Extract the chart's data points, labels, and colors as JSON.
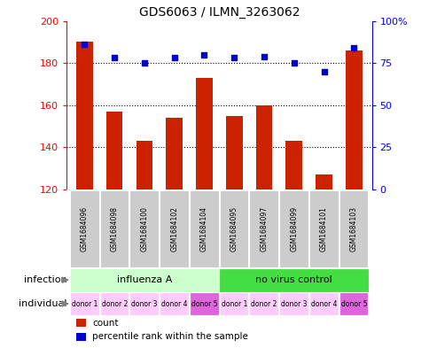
{
  "title": "GDS6063 / ILMN_3263062",
  "samples": [
    "GSM1684096",
    "GSM1684098",
    "GSM1684100",
    "GSM1684102",
    "GSM1684104",
    "GSM1684095",
    "GSM1684097",
    "GSM1684099",
    "GSM1684101",
    "GSM1684103"
  ],
  "counts": [
    190,
    157,
    143,
    154,
    173,
    155,
    160,
    143,
    127,
    186
  ],
  "percentiles": [
    86,
    78,
    75,
    78,
    80,
    78,
    79,
    75,
    70,
    84
  ],
  "ylim_left": [
    120,
    200
  ],
  "ylim_right": [
    0,
    100
  ],
  "yticks_left": [
    120,
    140,
    160,
    180,
    200
  ],
  "yticks_right": [
    0,
    25,
    50,
    75,
    100
  ],
  "ytick_labels_right": [
    "0",
    "25",
    "50",
    "75",
    "100%"
  ],
  "bar_color": "#cc2200",
  "dot_color": "#0000cc",
  "grid_color": "#000000",
  "infection_groups": [
    {
      "label": "influenza A",
      "start": 0,
      "end": 5,
      "color": "#ccffcc"
    },
    {
      "label": "no virus control",
      "start": 5,
      "end": 10,
      "color": "#44dd44"
    }
  ],
  "individual_labels": [
    "donor 1",
    "donor 2",
    "donor 3",
    "donor 4",
    "donor 5",
    "donor 1",
    "donor 2",
    "donor 3",
    "donor 4",
    "donor 5"
  ],
  "individual_colors": [
    "#ffccff",
    "#ffccff",
    "#ffccff",
    "#ffccff",
    "#dd66dd",
    "#ffccff",
    "#ffccff",
    "#ffccff",
    "#ffccff",
    "#dd66dd"
  ],
  "infection_row_label": "infection",
  "individual_row_label": "individual",
  "legend_count_label": "count",
  "legend_percentile_label": "percentile rank within the sample",
  "bg_color": "#ffffff",
  "sample_bg_color": "#cccccc",
  "bar_width": 0.55
}
